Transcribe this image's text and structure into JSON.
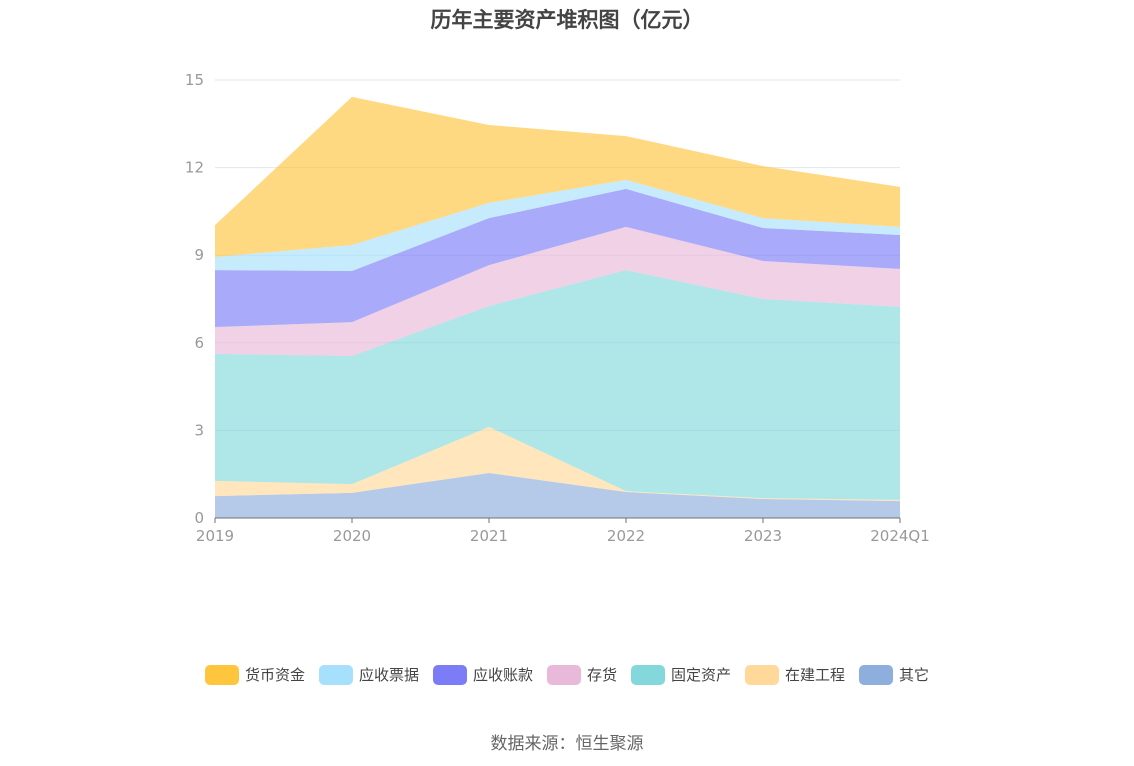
{
  "chart_data": {
    "type": "area",
    "stacked": true,
    "title": "历年主要资产堆积图（亿元）",
    "categories": [
      "2019",
      "2020",
      "2021",
      "2022",
      "2023",
      "2024Q1"
    ],
    "ylim": [
      0,
      15
    ],
    "yticks": [
      0,
      3,
      6,
      9,
      12,
      15
    ],
    "grid": true,
    "legend_position": "bottom",
    "series": [
      {
        "name": "其它",
        "color": "#8eaedd",
        "values": [
          0.75,
          0.86,
          1.54,
          0.89,
          0.65,
          0.58
        ]
      },
      {
        "name": "在建工程",
        "color": "#ffd89a",
        "values": [
          0.52,
          0.3,
          1.58,
          0.03,
          0.03,
          0.04
        ]
      },
      {
        "name": "固定资产",
        "color": "#84d8db",
        "values": [
          4.35,
          4.39,
          4.14,
          7.57,
          6.82,
          6.61
        ]
      },
      {
        "name": "存货",
        "color": "#e8b9d9",
        "values": [
          0.92,
          1.16,
          1.4,
          1.48,
          1.3,
          1.3
        ]
      },
      {
        "name": "应收账款",
        "color": "#7b7cf6",
        "values": [
          1.95,
          1.75,
          1.61,
          1.3,
          1.13,
          1.16
        ]
      },
      {
        "name": "应收票据",
        "color": "#a6e0fc",
        "values": [
          0.45,
          0.89,
          0.52,
          0.31,
          0.34,
          0.28
        ]
      },
      {
        "name": "货币资金",
        "color": "#ffc53d",
        "values": [
          1.09,
          5.07,
          2.67,
          1.5,
          1.78,
          1.37
        ]
      }
    ]
  },
  "legend_order": [
    "货币资金",
    "应收票据",
    "应收账款",
    "存货",
    "固定资产",
    "在建工程",
    "其它"
  ],
  "source": "数据来源：恒生聚源"
}
